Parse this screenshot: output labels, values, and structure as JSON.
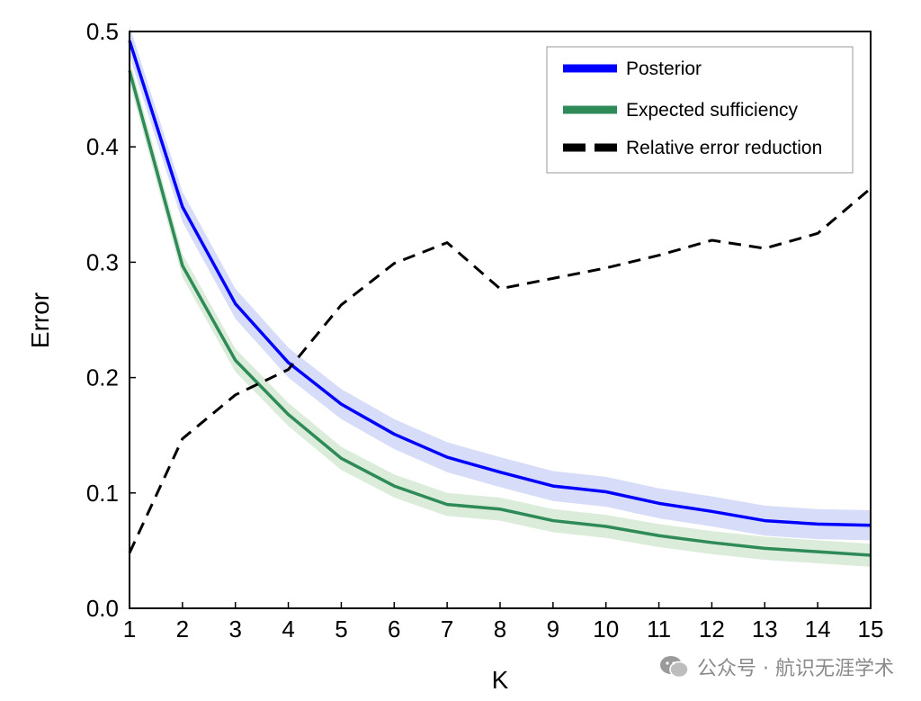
{
  "chart_data": {
    "type": "line",
    "xlabel": "K",
    "ylabel": "Error",
    "xlim": [
      1,
      15
    ],
    "ylim": [
      0,
      0.5
    ],
    "xticks": [
      "1",
      "2",
      "3",
      "4",
      "5",
      "6",
      "7",
      "8",
      "9",
      "10",
      "11",
      "12",
      "13",
      "14",
      "15"
    ],
    "yticks": [
      "0.0",
      "0.1",
      "0.2",
      "0.3",
      "0.4",
      "0.5"
    ],
    "grid": false,
    "legend_position": "top-right",
    "x": [
      1,
      2,
      3,
      4,
      5,
      6,
      7,
      8,
      9,
      10,
      11,
      12,
      13,
      14,
      15
    ],
    "series": [
      {
        "name": "Posterior",
        "color": "#0000ff",
        "band_color": "#c9d2f5",
        "style": "solid",
        "values": [
          0.492,
          0.348,
          0.264,
          0.213,
          0.177,
          0.151,
          0.131,
          0.118,
          0.106,
          0.101,
          0.091,
          0.084,
          0.076,
          0.073,
          0.072
        ],
        "band": 0.013
      },
      {
        "name": "Expected sufficiency",
        "color": "#2e8b57",
        "band_color": "#cfe6cf",
        "style": "solid",
        "values": [
          0.466,
          0.297,
          0.215,
          0.168,
          0.13,
          0.106,
          0.09,
          0.086,
          0.076,
          0.071,
          0.063,
          0.057,
          0.052,
          0.049,
          0.046
        ],
        "band": 0.01
      },
      {
        "name": "Relative error reduction",
        "color": "#000000",
        "style": "dashed",
        "values": [
          0.048,
          0.147,
          0.185,
          0.207,
          0.263,
          0.299,
          0.317,
          0.277,
          0.286,
          0.295,
          0.306,
          0.319,
          0.312,
          0.325,
          0.364
        ]
      }
    ]
  },
  "watermark": {
    "icon": "wechat-icon",
    "text": "公众号 · 航识无涯学术"
  }
}
